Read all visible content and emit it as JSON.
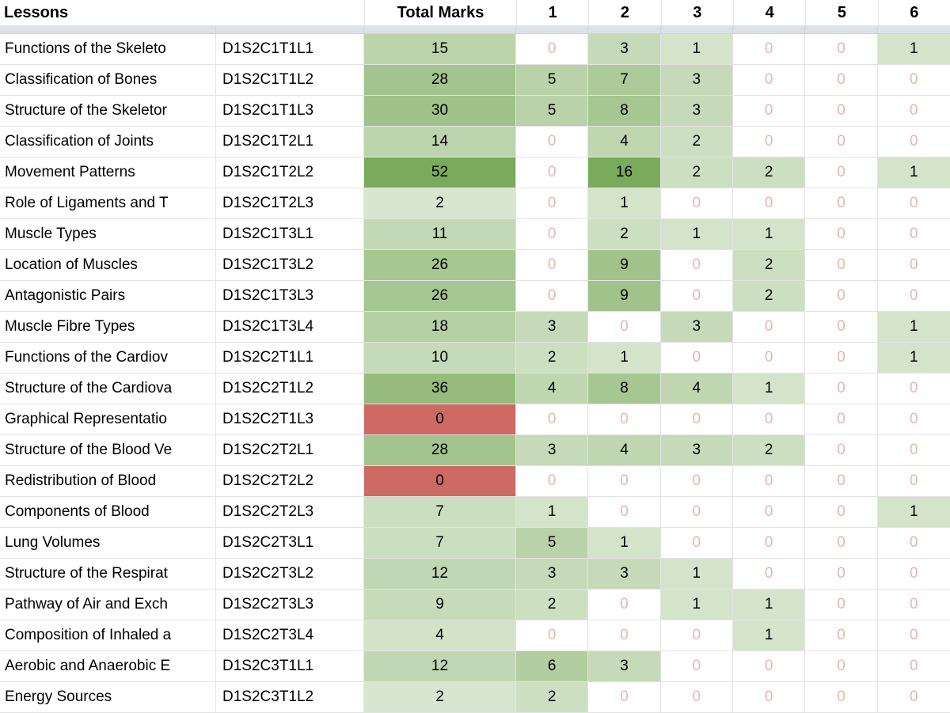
{
  "header": {
    "lessons": "Lessons",
    "total_marks": "Total Marks",
    "cols": [
      "1",
      "2",
      "3",
      "4",
      "5",
      "6"
    ]
  },
  "colors": {
    "heat_green_max": "#7aaa5c",
    "zero_total_red": "#cc6a63",
    "zero_value_text": "#e9b5ad",
    "frozen_band": "#dde1e8",
    "gridline": "#e3e3e3",
    "text": "#000000"
  },
  "scale": {
    "total_max": 52,
    "values_max": 16,
    "base": 0.25,
    "exponent": 0.85
  },
  "rows": [
    {
      "lesson": "Functions of the Skeleto",
      "code": "D1S2C1T1L1",
      "total": 15,
      "marks": [
        0,
        3,
        1,
        0,
        0,
        1
      ]
    },
    {
      "lesson": "Classification of Bones",
      "code": "D1S2C1T1L2",
      "total": 28,
      "marks": [
        5,
        7,
        3,
        0,
        0,
        0
      ]
    },
    {
      "lesson": "Structure of the Skeletor",
      "code": "D1S2C1T1L3",
      "total": 30,
      "marks": [
        5,
        8,
        3,
        0,
        0,
        0
      ]
    },
    {
      "lesson": "Classification of Joints",
      "code": "D1S2C1T2L1",
      "total": 14,
      "marks": [
        0,
        4,
        2,
        0,
        0,
        0
      ]
    },
    {
      "lesson": "Movement Patterns",
      "code": "D1S2C1T2L2",
      "total": 52,
      "marks": [
        0,
        16,
        2,
        2,
        0,
        1
      ]
    },
    {
      "lesson": "Role of Ligaments and T",
      "code": "D1S2C1T2L3",
      "total": 2,
      "marks": [
        0,
        1,
        0,
        0,
        0,
        0
      ]
    },
    {
      "lesson": "Muscle Types",
      "code": "D1S2C1T3L1",
      "total": 11,
      "marks": [
        0,
        2,
        1,
        1,
        0,
        0
      ]
    },
    {
      "lesson": "Location of Muscles",
      "code": "D1S2C1T3L2",
      "total": 26,
      "marks": [
        0,
        9,
        0,
        2,
        0,
        0
      ]
    },
    {
      "lesson": "Antagonistic Pairs",
      "code": "D1S2C1T3L3",
      "total": 26,
      "marks": [
        0,
        9,
        0,
        2,
        0,
        0
      ]
    },
    {
      "lesson": "Muscle Fibre Types",
      "code": "D1S2C1T3L4",
      "total": 18,
      "marks": [
        3,
        0,
        3,
        0,
        0,
        1
      ]
    },
    {
      "lesson": "Functions of the Cardiov",
      "code": "D1S2C2T1L1",
      "total": 10,
      "marks": [
        2,
        1,
        0,
        0,
        0,
        1
      ]
    },
    {
      "lesson": "Structure of the Cardiova",
      "code": "D1S2C2T1L2",
      "total": 36,
      "marks": [
        4,
        8,
        4,
        1,
        0,
        0
      ]
    },
    {
      "lesson": "Graphical Representatio",
      "code": "D1S2C2T1L3",
      "total": 0,
      "marks": [
        0,
        0,
        0,
        0,
        0,
        0
      ]
    },
    {
      "lesson": "Structure of the Blood Ve",
      "code": "D1S2C2T2L1",
      "total": 28,
      "marks": [
        3,
        4,
        3,
        2,
        0,
        0
      ]
    },
    {
      "lesson": "Redistribution of Blood",
      "code": "D1S2C2T2L2",
      "total": 0,
      "marks": [
        0,
        0,
        0,
        0,
        0,
        0
      ]
    },
    {
      "lesson": "Components of Blood",
      "code": "D1S2C2T2L3",
      "total": 7,
      "marks": [
        1,
        0,
        0,
        0,
        0,
        1
      ]
    },
    {
      "lesson": "Lung Volumes",
      "code": "D1S2C2T3L1",
      "total": 7,
      "marks": [
        5,
        1,
        0,
        0,
        0,
        0
      ]
    },
    {
      "lesson": "Structure of the Respirat",
      "code": "D1S2C2T3L2",
      "total": 12,
      "marks": [
        3,
        3,
        1,
        0,
        0,
        0
      ]
    },
    {
      "lesson": "Pathway of Air and Exch",
      "code": "D1S2C2T3L3",
      "total": 9,
      "marks": [
        2,
        0,
        1,
        1,
        0,
        0
      ]
    },
    {
      "lesson": "Composition of Inhaled a",
      "code": "D1S2C2T3L4",
      "total": 4,
      "marks": [
        0,
        0,
        0,
        1,
        0,
        0
      ]
    },
    {
      "lesson": "Aerobic and Anaerobic E",
      "code": "D1S2C3T1L1",
      "total": 12,
      "marks": [
        6,
        3,
        0,
        0,
        0,
        0
      ]
    },
    {
      "lesson": "Energy Sources",
      "code": "D1S2C3T1L2",
      "total": 2,
      "marks": [
        2,
        0,
        0,
        0,
        0,
        0
      ]
    }
  ]
}
